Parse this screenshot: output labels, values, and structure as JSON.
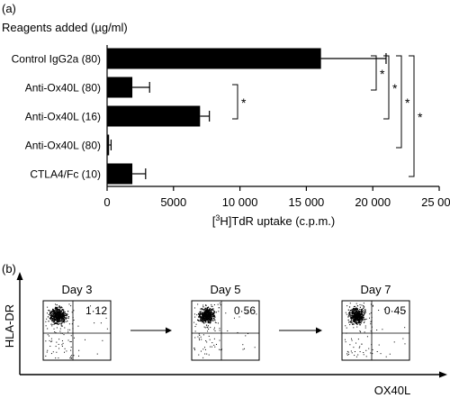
{
  "panel_a": {
    "label": "(a)",
    "header": "Reagents added (µg/ml)",
    "chart_data": {
      "type": "bar",
      "orientation": "horizontal",
      "categories": [
        "Control IgG2a (80)",
        "Anti-Ox40L (80)",
        "Anti-Ox40L (16)",
        "Anti-Ox40L (80)",
        "CTLA4/Fc (10)"
      ],
      "values": [
        16100,
        1900,
        7000,
        150,
        1900
      ],
      "errors": [
        4900,
        1300,
        700,
        150,
        1000
      ],
      "xlabel_pre": "[",
      "xlabel_sup": "3",
      "xlabel_post": "H]TdR uptake (c.p.m.)",
      "xlim": [
        0,
        25000
      ],
      "xticks": [
        0,
        5000,
        10000,
        15000,
        20000,
        25000
      ],
      "xtick_labels": [
        "0",
        "5000",
        "10 000",
        "15 000",
        "20 000",
        "25 000"
      ],
      "significance": [
        {
          "from": 0,
          "to": 1,
          "label": "*"
        },
        {
          "from": 0,
          "to": 2,
          "label": "*"
        },
        {
          "from": 0,
          "to": 3,
          "label": "*"
        },
        {
          "from": 0,
          "to": 4,
          "label": "*"
        },
        {
          "from": 1,
          "to": 2,
          "label": "*"
        }
      ]
    }
  },
  "panel_b": {
    "label": "(b)",
    "y_axis_label": "HLA-DR",
    "x_axis_label": "OX40L",
    "plots": [
      {
        "day": "Day 3",
        "value": "1·12"
      },
      {
        "day": "Day 5",
        "value": "0·56"
      },
      {
        "day": "Day 7",
        "value": "0·45"
      }
    ]
  }
}
